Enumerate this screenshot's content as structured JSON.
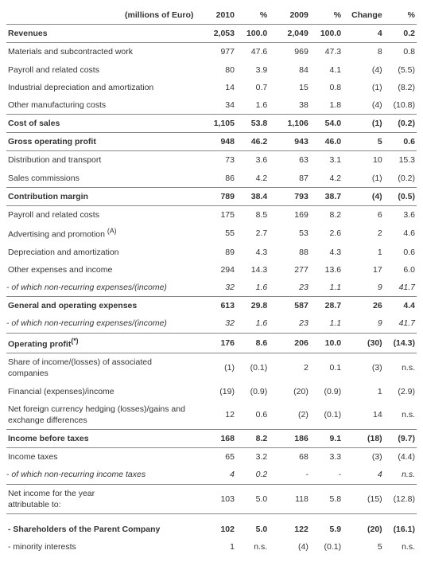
{
  "table": {
    "header_label": "(millions of Euro)",
    "columns": [
      "2010",
      "%",
      "2009",
      "%",
      "Change",
      "%"
    ],
    "rows": [
      {
        "label": "Revenues",
        "vals": [
          "2,053",
          "100.0",
          "2,049",
          "100.0",
          "4",
          "0.2"
        ],
        "bold": true,
        "sep": true
      },
      {
        "label": "Materials and subcontracted work",
        "vals": [
          "977",
          "47.6",
          "969",
          "47.3",
          "8",
          "0.8"
        ]
      },
      {
        "label": "Payroll and related costs",
        "vals": [
          "80",
          "3.9",
          "84",
          "4.1",
          "(4)",
          "(5.5)"
        ]
      },
      {
        "label": "Industrial depreciation and amortization",
        "vals": [
          "14",
          "0.7",
          "15",
          "0.8",
          "(1)",
          "(8.2)"
        ]
      },
      {
        "label": "Other manufacturing costs",
        "vals": [
          "34",
          "1.6",
          "38",
          "1.8",
          "(4)",
          "(10.8)"
        ],
        "sep": true
      },
      {
        "label": "Cost of sales",
        "vals": [
          "1,105",
          "53.8",
          "1,106",
          "54.0",
          "(1)",
          "(0.2)"
        ],
        "bold": true,
        "sep": true
      },
      {
        "label": "Gross operating profit",
        "vals": [
          "948",
          "46.2",
          "943",
          "46.0",
          "5",
          "0.6"
        ],
        "bold": true,
        "sep": true
      },
      {
        "label": "Distribution and transport",
        "vals": [
          "73",
          "3.6",
          "63",
          "3.1",
          "10",
          "15.3"
        ]
      },
      {
        "label": "Sales commissions",
        "vals": [
          "86",
          "4.2",
          "87",
          "4.2",
          "(1)",
          "(0.2)"
        ],
        "sep": true
      },
      {
        "label": "Contribution margin",
        "vals": [
          "789",
          "38.4",
          "793",
          "38.7",
          "(4)",
          "(0.5)"
        ],
        "bold": true,
        "sep": true
      },
      {
        "label": "Payroll and related costs",
        "vals": [
          "175",
          "8.5",
          "169",
          "8.2",
          "6",
          "3.6"
        ]
      },
      {
        "label": "Advertising and promotion <sup>(A)</sup>",
        "vals": [
          "55",
          "2.7",
          "53",
          "2.6",
          "2",
          "4.6"
        ]
      },
      {
        "label": "Depreciation and amortization",
        "vals": [
          "89",
          "4.3",
          "88",
          "4.3",
          "1",
          "0.6"
        ]
      },
      {
        "label": "Other expenses and income",
        "vals": [
          "294",
          "14.3",
          "277",
          "13.6",
          "17",
          "6.0"
        ]
      },
      {
        "label": "- of which non-recurring expenses/(income)",
        "vals": [
          "32",
          "1.6",
          "23",
          "1.1",
          "9",
          "41.7"
        ],
        "italic": true,
        "sep": true
      },
      {
        "label": "General and operating expenses",
        "vals": [
          "613",
          "29.8",
          "587",
          "28.7",
          "26",
          "4.4"
        ],
        "bold": true
      },
      {
        "label": "- of which non-recurring expenses/(income)",
        "vals": [
          "32",
          "1.6",
          "23",
          "1.1",
          "9",
          "41.7"
        ],
        "italic": true,
        "sep": true
      },
      {
        "label": "Operating profit<sup>(*)</sup>",
        "vals": [
          "176",
          "8.6",
          "206",
          "10.0",
          "(30)",
          "(14.3)"
        ],
        "bold": true,
        "sep": true
      },
      {
        "label": "Share of income/(losses) of associated companies",
        "vals": [
          "(1)",
          "(0.1)",
          "2",
          "0.1",
          "(3)",
          "n.s."
        ]
      },
      {
        "label": "Financial (expenses)/income",
        "vals": [
          "(19)",
          "(0.9)",
          "(20)",
          "(0.9)",
          "1",
          "(2.9)"
        ]
      },
      {
        "label": "Net foreign currency hedging (losses)/gains and exchange differences",
        "vals": [
          "12",
          "0.6",
          "(2)",
          "(0.1)",
          "14",
          "n.s."
        ],
        "sep": true
      },
      {
        "label": "Income before taxes",
        "vals": [
          "168",
          "8.2",
          "186",
          "9.1",
          "(18)",
          "(9.7)"
        ],
        "bold": true,
        "sep": true
      },
      {
        "label": "Income taxes",
        "vals": [
          "65",
          "3.2",
          "68",
          "3.3",
          "(3)",
          "(4.4)"
        ]
      },
      {
        "label": "- of which non-recurring income taxes",
        "vals": [
          "4",
          "0.2",
          "-",
          "-",
          "4",
          "n.s."
        ],
        "italic": true,
        "sep": true
      },
      {
        "label": "Net income for the year<br>attributable to:",
        "vals": [
          "103",
          "5.0",
          "118",
          "5.8",
          "(15)",
          "(12.8)"
        ],
        "sep": true
      },
      {
        "label": "",
        "vals": [
          "",
          "",
          "",
          "",
          "",
          ""
        ]
      },
      {
        "label": "- Shareholders of the Parent Company",
        "vals": [
          "102",
          "5.0",
          "122",
          "5.9",
          "(20)",
          "(16.1)"
        ],
        "bold": true
      },
      {
        "label": "- minority interests",
        "vals": [
          "1",
          "n.s.",
          "(4)",
          "(0.1)",
          "5",
          "n.s."
        ]
      }
    ]
  }
}
